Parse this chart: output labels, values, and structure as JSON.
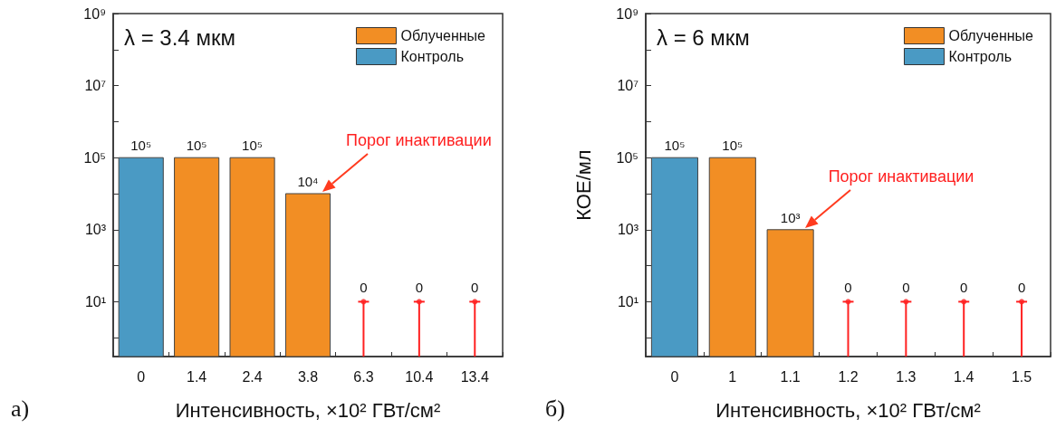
{
  "chart_data": [
    {
      "type": "bar",
      "subtitle": "λ = 3.4 мкм",
      "xlabel": "Интенсивность, ×10² ГВт/см²",
      "categories": [
        "0",
        "1.4",
        "2.4",
        "3.8",
        "6.3",
        "10.4",
        "13.4"
      ],
      "series": [
        {
          "name": "Облученные",
          "color": "#f28e24",
          "values": [
            null,
            100000,
            100000,
            10000,
            null,
            null,
            null
          ],
          "value_labels": [
            null,
            "10⁵",
            "10⁵",
            "10⁴",
            "0",
            "0",
            "0"
          ]
        },
        {
          "name": "Контроль",
          "color": "#4a9ac4",
          "values": [
            100000,
            null,
            null,
            null,
            null,
            null,
            null
          ],
          "value_labels": [
            "10⁵",
            null,
            null,
            null,
            null,
            null,
            null
          ]
        },
        {
          "type": "lollipop",
          "color": "#ff2020",
          "marker": "circle",
          "values": [
            null,
            null,
            null,
            null,
            10,
            10,
            10
          ]
        }
      ],
      "log": "y",
      "ylim": [
        0.3,
        1000000000
      ],
      "yticks": [
        {
          "value": 1,
          "label": null
        },
        {
          "value": 10,
          "label": "10¹"
        },
        {
          "value": 100,
          "label": null
        },
        {
          "value": 1000,
          "label": "10³"
        },
        {
          "value": 10000,
          "label": null
        },
        {
          "value": 100000,
          "label": "10⁵"
        },
        {
          "value": 1000000,
          "label": null
        },
        {
          "value": 10000000,
          "label": "10⁷"
        },
        {
          "value": 100000000,
          "label": null
        },
        {
          "value": 1000000000,
          "label": "10⁹"
        }
      ],
      "legend": "top right",
      "grid": false,
      "annotations": [
        "а)",
        "Порог инактивации"
      ]
    },
    {
      "type": "bar",
      "subtitle": "λ = 6 мкм",
      "xlabel": "Интенсивность, ×10² ГВт/см²",
      "ylabel": "КОЕ/мл",
      "categories": [
        "0",
        "1",
        "1.1",
        "1.2",
        "1.3",
        "1.4",
        "1.5"
      ],
      "series": [
        {
          "name": "Облученные",
          "color": "#f28e24",
          "values": [
            null,
            100000,
            1000,
            null,
            null,
            null,
            null
          ],
          "value_labels": [
            null,
            "10⁵",
            "10³",
            "0",
            "0",
            "0",
            "0"
          ]
        },
        {
          "name": "Контроль",
          "color": "#4a9ac4",
          "values": [
            100000,
            null,
            null,
            null,
            null,
            null,
            null
          ],
          "value_labels": [
            "10⁵",
            null,
            null,
            null,
            null,
            null,
            null
          ]
        },
        {
          "type": "lollipop",
          "color": "#ff2020",
          "marker": "circle",
          "values": [
            null,
            null,
            null,
            10,
            10,
            10,
            10
          ]
        }
      ],
      "log": "y",
      "ylim": [
        0.3,
        1000000000
      ],
      "yticks": [
        {
          "value": 1,
          "label": null
        },
        {
          "value": 10,
          "label": "10¹"
        },
        {
          "value": 100,
          "label": null
        },
        {
          "value": 1000,
          "label": "10³"
        },
        {
          "value": 10000,
          "label": null
        },
        {
          "value": 100000,
          "label": "10⁵"
        },
        {
          "value": 1000000,
          "label": null
        },
        {
          "value": 10000000,
          "label": "10⁷"
        },
        {
          "value": 100000000,
          "label": null
        },
        {
          "value": 1000000000,
          "label": "10⁹"
        }
      ],
      "legend": "top right",
      "grid": false,
      "annotations": [
        "б)",
        "Порог инактивации"
      ]
    }
  ]
}
